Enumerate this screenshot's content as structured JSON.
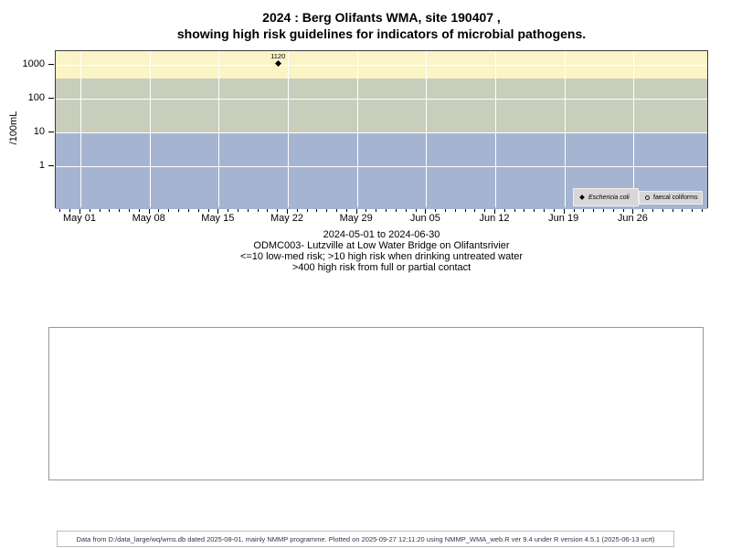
{
  "title": {
    "line1": "2024 : Berg Olifants WMA, site 190407 ,",
    "line2": "showing high risk guidelines for indicators of microbial pathogens."
  },
  "chart_data": {
    "type": "scatter",
    "title": "2024 : Berg Olifants WMA, site 190407 , showing high risk guidelines for indicators of microbial pathogens.",
    "xlabel": "",
    "ylabel": "/100mL",
    "y_scale": "log10",
    "ylim": [
      0.05,
      2500
    ],
    "y_ticks": [
      "1000",
      "100",
      "10",
      "1"
    ],
    "x_ticks": [
      "May 01",
      "May 08",
      "May 15",
      "May 22",
      "May 29",
      "Jun 05",
      "Jun 12",
      "Jun 19",
      "Jun 26"
    ],
    "x_range": "2024-05-01 to 2024-06-30",
    "grid": "white gridlines at weekly dates and log decades",
    "legend_position": "bottom-right inside panel",
    "series": [
      {
        "name": "Eschericia coli",
        "marker": "filled-diamond",
        "color": "#000000",
        "points": [
          {
            "date": "2024-05-21",
            "day_index": 20,
            "value": 1120,
            "label": "1120"
          }
        ]
      },
      {
        "name": "faecal coliforms",
        "marker": "open-circle",
        "color": "#000000",
        "points": []
      }
    ],
    "bands": [
      {
        "name": "high-risk-full-or-partial-contact",
        "label": ">400 high risk from full or partial contact",
        "value_range": [
          400,
          2500
        ],
        "color": "#FBF4C6"
      },
      {
        "name": "high-risk-drinking-untreated",
        "label": ">10 high risk when drinking untreated water",
        "value_range": [
          10,
          400
        ],
        "color": "#C8CEBB"
      },
      {
        "name": "low-med-risk",
        "label": "<=10 low-med risk",
        "value_range": [
          0.05,
          10
        ],
        "color": "#A5B4D0"
      }
    ],
    "caption": [
      "2024-05-01 to 2024-06-30",
      "ODMC003- Lutzville at Low Water Bridge on Olifantsrivier",
      "<=10 low-med risk; >10 high risk when drinking untreated water",
      ">400 high risk from full or partial contact"
    ]
  },
  "legend": {
    "items": [
      {
        "label": "Eschericia coli",
        "marker": "filled-diamond"
      },
      {
        "label": "faecal coliforms",
        "marker": "open-circle"
      }
    ]
  },
  "footer": {
    "text": "Data from D:/data_large/wq/wms.db dated 2025-08-01, mainly NMMP programme. Plotted on 2025-09-27 12:11:20 using NMMP_WMA_web.R ver 9.4 under R version 4.5.1 (2025-06-13 ucrt)"
  }
}
